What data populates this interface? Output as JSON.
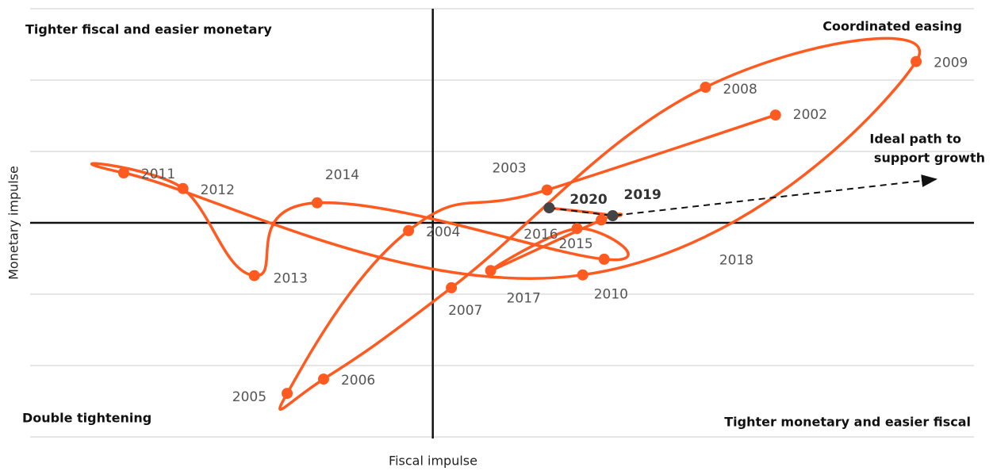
{
  "chart_data": {
    "type": "scatter-path",
    "x_label": "Fiscal impulse",
    "y_label": "Monetary impulse",
    "quadrants": [
      "Tighter fiscal and easier monetary",
      "Coordinated easing",
      "Double tightening",
      "Tighter monetary and easier fiscal"
    ],
    "annotation": [
      "Ideal path to",
      "support growth"
    ],
    "categories": [
      "2002",
      "2003",
      "2004",
      "2005",
      "2006",
      "2007",
      "2008",
      "2009",
      "2010",
      "2011",
      "2012",
      "2013",
      "2014",
      "2015",
      "2016",
      "2017",
      "2018",
      "2019",
      "2020"
    ],
    "x": [
      4.8,
      1.6,
      -0.34,
      -2.04,
      -1.53,
      0.26,
      3.82,
      6.77,
      2.1,
      -4.33,
      -3.5,
      -2.5,
      -1.62,
      2.4,
      2.02,
      0.81,
      2.36,
      2.52,
      1.63
    ],
    "values": [
      1.51,
      0.46,
      -0.11,
      -2.39,
      -2.19,
      -0.91,
      1.9,
      2.26,
      -0.73,
      0.7,
      0.48,
      -0.74,
      0.28,
      -0.51,
      -0.08,
      -0.67,
      0.04,
      0.1,
      0.21
    ],
    "color": "#ff5a1f",
    "point_colors": [
      "#ff5a1f",
      "#ff5a1f",
      "#ff5a1f",
      "#ff5a1f",
      "#ff5a1f",
      "#ff5a1f",
      "#ff5a1f",
      "#ff5a1f",
      "#ff5a1f",
      "#ff5a1f",
      "#ff5a1f",
      "#ff5a1f",
      "#ff5a1f",
      "#ff5a1f",
      "#ff5a1f",
      "#ff5a1f",
      "#ff5a1f",
      "#444444",
      "#444444"
    ],
    "xlim": [
      -5.64,
      7.58
    ],
    "ylim": [
      -3,
      3
    ],
    "yticks": [
      -3,
      -2,
      -1,
      1,
      2,
      3
    ],
    "grid": true
  }
}
